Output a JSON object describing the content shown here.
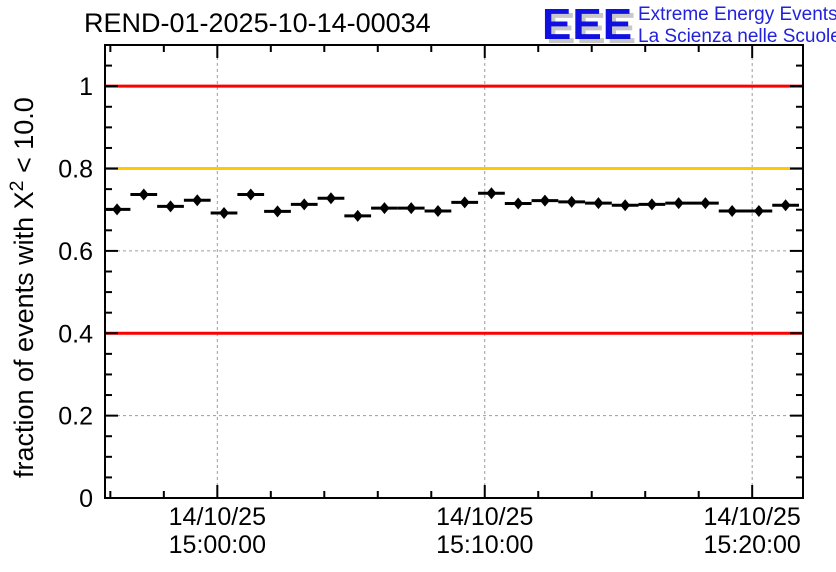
{
  "header": {
    "title": "REND-01-2025-10-14-00034"
  },
  "logo": {
    "acronym": "EEE",
    "line1": "Extreme Energy Events",
    "line2": "La Scienza nelle Scuole",
    "blue": "#1010e0",
    "text_blue": "#2222dd",
    "shadow": "#c8c8c8"
  },
  "chart_data": {
    "type": "scatter",
    "title": "REND-01-2025-10-14-00034",
    "ylabel": "fraction of events with X^2 < 10.0",
    "ylabel_parts": {
      "prefix": "fraction of events with X",
      "sup": "2",
      "suffix": " < 10.0"
    },
    "ylim": [
      0,
      1.1
    ],
    "xlim_minutes": [
      -4.2,
      21.9
    ],
    "x_time_origin": "14/10/25 15:00:00",
    "grid_on": true,
    "yticks": [
      {
        "v": 0,
        "label": "0"
      },
      {
        "v": 0.2,
        "label": "0.2"
      },
      {
        "v": 0.4,
        "label": "0.4"
      },
      {
        "v": 0.6,
        "label": "0.6"
      },
      {
        "v": 0.8,
        "label": "0.8"
      },
      {
        "v": 1,
        "label": "1"
      }
    ],
    "xticks": [
      {
        "t": 0,
        "date": "14/10/25",
        "time": "15:00:00"
      },
      {
        "t": 10,
        "date": "14/10/25",
        "time": "15:10:00"
      },
      {
        "t": 20,
        "date": "14/10/25",
        "time": "15:20:00"
      }
    ],
    "minor_x_step_minutes": 2,
    "minor_y_step": 0.05,
    "grid": {
      "x_minutes": [
        0,
        10,
        20
      ],
      "y": [
        0.2,
        0.4,
        0.6,
        0.8,
        1.0
      ],
      "color": "#9c9c9c"
    },
    "reference_lines": [
      {
        "y": 1.0,
        "color": "#ff0000"
      },
      {
        "y": 0.8,
        "color": "#ffc800"
      },
      {
        "y": 0.4,
        "color": "#ff0000"
      }
    ],
    "series": [
      {
        "name": "fraction-of-events-chi2-lt-10",
        "marker": "diamond",
        "color": "#000000",
        "xerr_minutes": 0.5,
        "points_format": [
          "t_minutes_from_15:00:00",
          "fraction"
        ],
        "points": [
          [
            -3.75,
            0.701
          ],
          [
            -2.75,
            0.737
          ],
          [
            -1.75,
            0.708
          ],
          [
            -0.75,
            0.723
          ],
          [
            0.25,
            0.692
          ],
          [
            1.25,
            0.737
          ],
          [
            2.25,
            0.696
          ],
          [
            3.25,
            0.713
          ],
          [
            4.25,
            0.728
          ],
          [
            5.25,
            0.685
          ],
          [
            6.25,
            0.704
          ],
          [
            7.25,
            0.704
          ],
          [
            8.25,
            0.697
          ],
          [
            9.25,
            0.718
          ],
          [
            10.25,
            0.74
          ],
          [
            11.25,
            0.715
          ],
          [
            12.25,
            0.722
          ],
          [
            13.25,
            0.719
          ],
          [
            14.25,
            0.716
          ],
          [
            15.25,
            0.711
          ],
          [
            16.25,
            0.713
          ],
          [
            17.25,
            0.716
          ],
          [
            18.25,
            0.716
          ],
          [
            19.25,
            0.697
          ],
          [
            20.25,
            0.697
          ],
          [
            21.25,
            0.711
          ]
        ]
      }
    ]
  }
}
